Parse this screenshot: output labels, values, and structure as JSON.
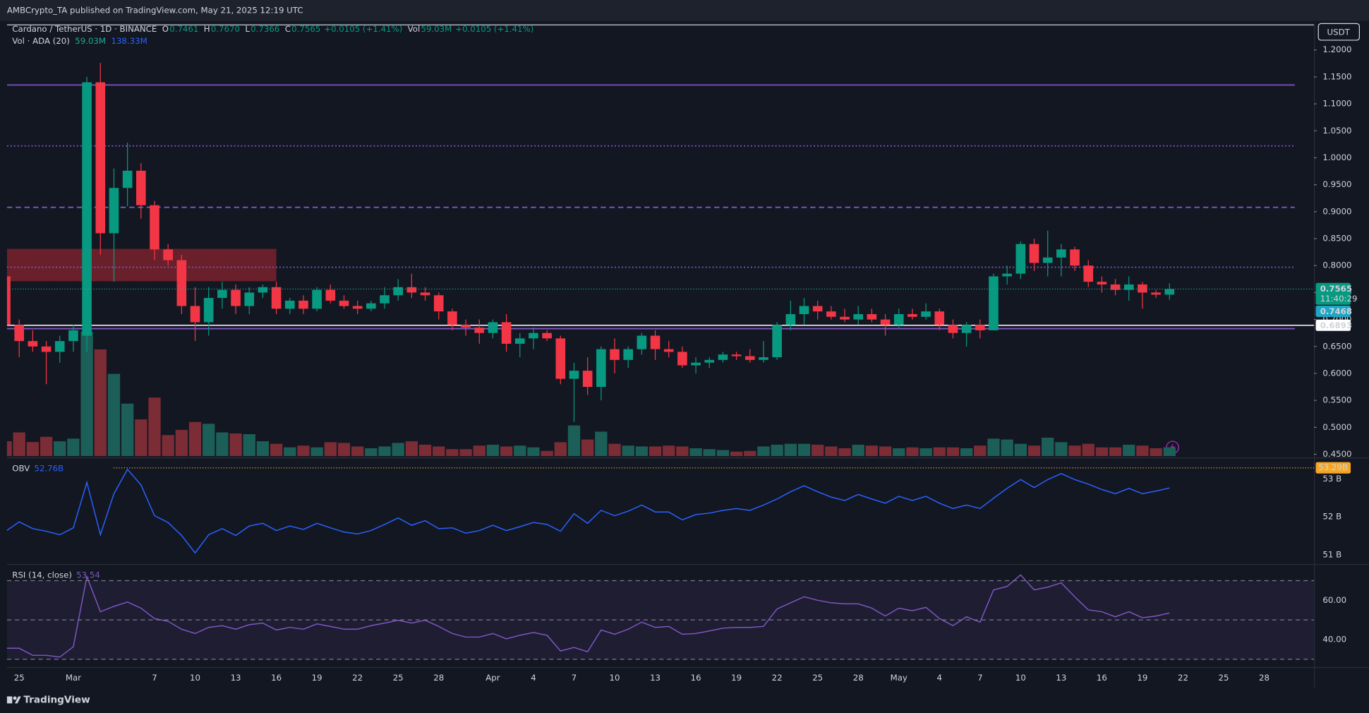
{
  "header": "AMBCrypto_TA published on TradingView.com, May 21, 2025 12:19 UTC",
  "brand": "TradingView",
  "currency": "USDT",
  "chart_data": {
    "type": "candlestick",
    "title": "Cardano / TetherUS · 1D · BINANCE",
    "legend": [
      {
        "key": "O",
        "value": "0.7461"
      },
      {
        "key": "H",
        "value": "0.7670"
      },
      {
        "key": "L",
        "value": "0.7366"
      },
      {
        "key": "C",
        "value": "0.7565"
      },
      {
        "value": "+0.0105 (+1.41%)"
      },
      {
        "key": "Vol",
        "value": "59.03M"
      },
      {
        "value": "+0.0105 (+1.41%)"
      }
    ],
    "up_color": "#089981",
    "down_color": "#f23645",
    "x": [
      "02-24",
      "02-25",
      "02-26",
      "02-27",
      "02-28",
      "03-01",
      "03-02",
      "03-03",
      "03-04",
      "03-05",
      "03-06",
      "03-07",
      "03-08",
      "03-09",
      "03-10",
      "03-11",
      "03-12",
      "03-13",
      "03-14",
      "03-15",
      "03-16",
      "03-17",
      "03-18",
      "03-19",
      "03-20",
      "03-21",
      "03-22",
      "03-23",
      "03-24",
      "03-25",
      "03-26",
      "03-27",
      "03-28",
      "03-29",
      "03-30",
      "03-31",
      "04-01",
      "04-02",
      "04-03",
      "04-04",
      "04-05",
      "04-06",
      "04-07",
      "04-08",
      "04-09",
      "04-10",
      "04-11",
      "04-12",
      "04-13",
      "04-14",
      "04-15",
      "04-16",
      "04-17",
      "04-18",
      "04-19",
      "04-20",
      "04-21",
      "04-22",
      "04-23",
      "04-24",
      "04-25",
      "04-26",
      "04-27",
      "04-28",
      "04-29",
      "04-30",
      "05-01",
      "05-02",
      "05-03",
      "05-04",
      "05-05",
      "05-06",
      "05-07",
      "05-08",
      "05-09",
      "05-10",
      "05-11",
      "05-12",
      "05-13",
      "05-14",
      "05-15",
      "05-16",
      "05-17",
      "05-18",
      "05-19",
      "05-20",
      "05-21"
    ],
    "ohlc": [
      [
        0.78,
        0.79,
        0.68,
        0.69
      ],
      [
        0.69,
        0.7,
        0.63,
        0.66
      ],
      [
        0.66,
        0.68,
        0.64,
        0.65
      ],
      [
        0.65,
        0.66,
        0.58,
        0.64
      ],
      [
        0.64,
        0.67,
        0.62,
        0.66
      ],
      [
        0.66,
        0.69,
        0.64,
        0.68
      ],
      [
        0.67,
        1.15,
        0.64,
        1.14
      ],
      [
        1.14,
        1.176,
        0.82,
        0.86
      ],
      [
        0.86,
        0.98,
        0.77,
        0.944
      ],
      [
        0.944,
        1.028,
        0.91,
        0.976
      ],
      [
        0.976,
        0.99,
        0.887,
        0.912
      ],
      [
        0.912,
        0.92,
        0.81,
        0.83
      ],
      [
        0.83,
        0.84,
        0.8,
        0.81
      ],
      [
        0.81,
        0.82,
        0.71,
        0.725
      ],
      [
        0.725,
        0.76,
        0.66,
        0.695
      ],
      [
        0.695,
        0.76,
        0.67,
        0.74
      ],
      [
        0.74,
        0.77,
        0.72,
        0.755
      ],
      [
        0.755,
        0.765,
        0.71,
        0.725
      ],
      [
        0.725,
        0.76,
        0.71,
        0.75
      ],
      [
        0.75,
        0.765,
        0.74,
        0.76
      ],
      [
        0.76,
        0.77,
        0.71,
        0.72
      ],
      [
        0.72,
        0.74,
        0.71,
        0.735
      ],
      [
        0.735,
        0.745,
        0.71,
        0.72
      ],
      [
        0.72,
        0.76,
        0.715,
        0.755
      ],
      [
        0.755,
        0.765,
        0.73,
        0.735
      ],
      [
        0.735,
        0.745,
        0.72,
        0.725
      ],
      [
        0.725,
        0.735,
        0.71,
        0.72
      ],
      [
        0.72,
        0.735,
        0.715,
        0.73
      ],
      [
        0.73,
        0.76,
        0.72,
        0.745
      ],
      [
        0.745,
        0.775,
        0.735,
        0.76
      ],
      [
        0.76,
        0.785,
        0.74,
        0.75
      ],
      [
        0.75,
        0.76,
        0.735,
        0.745
      ],
      [
        0.745,
        0.75,
        0.7,
        0.715
      ],
      [
        0.715,
        0.72,
        0.68,
        0.69
      ],
      [
        0.69,
        0.7,
        0.67,
        0.685
      ],
      [
        0.685,
        0.7,
        0.655,
        0.675
      ],
      [
        0.675,
        0.7,
        0.665,
        0.695
      ],
      [
        0.695,
        0.71,
        0.64,
        0.655
      ],
      [
        0.655,
        0.675,
        0.63,
        0.665
      ],
      [
        0.665,
        0.685,
        0.645,
        0.675
      ],
      [
        0.675,
        0.68,
        0.66,
        0.665
      ],
      [
        0.665,
        0.67,
        0.58,
        0.59
      ],
      [
        0.59,
        0.62,
        0.51,
        0.605
      ],
      [
        0.605,
        0.63,
        0.56,
        0.575
      ],
      [
        0.575,
        0.65,
        0.55,
        0.645
      ],
      [
        0.645,
        0.665,
        0.6,
        0.625
      ],
      [
        0.625,
        0.65,
        0.61,
        0.645
      ],
      [
        0.645,
        0.675,
        0.635,
        0.67
      ],
      [
        0.67,
        0.68,
        0.625,
        0.645
      ],
      [
        0.645,
        0.66,
        0.63,
        0.64
      ],
      [
        0.64,
        0.65,
        0.61,
        0.615
      ],
      [
        0.615,
        0.63,
        0.6,
        0.62
      ],
      [
        0.62,
        0.63,
        0.61,
        0.625
      ],
      [
        0.625,
        0.64,
        0.62,
        0.635
      ],
      [
        0.635,
        0.64,
        0.625,
        0.632
      ],
      [
        0.632,
        0.645,
        0.62,
        0.625
      ],
      [
        0.625,
        0.66,
        0.62,
        0.63
      ],
      [
        0.63,
        0.695,
        0.625,
        0.69
      ],
      [
        0.69,
        0.735,
        0.68,
        0.71
      ],
      [
        0.71,
        0.74,
        0.69,
        0.725
      ],
      [
        0.725,
        0.735,
        0.7,
        0.715
      ],
      [
        0.715,
        0.725,
        0.7,
        0.705
      ],
      [
        0.705,
        0.72,
        0.695,
        0.7
      ],
      [
        0.7,
        0.725,
        0.69,
        0.71
      ],
      [
        0.71,
        0.72,
        0.695,
        0.7
      ],
      [
        0.7,
        0.71,
        0.67,
        0.69
      ],
      [
        0.69,
        0.72,
        0.685,
        0.71
      ],
      [
        0.71,
        0.72,
        0.7,
        0.705
      ],
      [
        0.705,
        0.73,
        0.7,
        0.715
      ],
      [
        0.715,
        0.72,
        0.68,
        0.69
      ],
      [
        0.69,
        0.7,
        0.665,
        0.675
      ],
      [
        0.675,
        0.695,
        0.65,
        0.69
      ],
      [
        0.69,
        0.7,
        0.665,
        0.68
      ],
      [
        0.68,
        0.785,
        0.68,
        0.78
      ],
      [
        0.78,
        0.8,
        0.765,
        0.785
      ],
      [
        0.785,
        0.845,
        0.775,
        0.84
      ],
      [
        0.84,
        0.85,
        0.79,
        0.805
      ],
      [
        0.805,
        0.865,
        0.78,
        0.815
      ],
      [
        0.815,
        0.84,
        0.78,
        0.83
      ],
      [
        0.83,
        0.835,
        0.79,
        0.8
      ],
      [
        0.8,
        0.81,
        0.76,
        0.77
      ],
      [
        0.77,
        0.78,
        0.75,
        0.765
      ],
      [
        0.765,
        0.775,
        0.745,
        0.755
      ],
      [
        0.755,
        0.78,
        0.735,
        0.765
      ],
      [
        0.765,
        0.77,
        0.72,
        0.75
      ],
      [
        0.75,
        0.755,
        0.74,
        0.7461
      ],
      [
        0.7461,
        0.767,
        0.7366,
        0.7565
      ]
    ],
    "ylim": [
      0.445,
      1.244
    ],
    "yticks": [
      {
        "value": 0.45,
        "label": "0.4500"
      },
      {
        "value": 0.5,
        "label": "0.5000"
      },
      {
        "value": 0.55,
        "label": "0.5500"
      },
      {
        "value": 0.6,
        "label": "0.6000"
      },
      {
        "value": 0.65,
        "label": "0.6500"
      },
      {
        "value": 0.7,
        "label": "0.7000"
      },
      {
        "value": 0.75,
        "label": "0.7500"
      },
      {
        "value": 0.8,
        "label": "0.8000"
      },
      {
        "value": 0.85,
        "label": "0.8500"
      },
      {
        "value": 0.9,
        "label": "0.9000"
      },
      {
        "value": 0.95,
        "label": "0.9500"
      },
      {
        "value": 1.0,
        "label": "1.0000"
      },
      {
        "value": 1.05,
        "label": "1.0500"
      },
      {
        "value": 1.1,
        "label": "1.1000"
      },
      {
        "value": 1.15,
        "label": "1.1500"
      },
      {
        "value": 1.2,
        "label": "1.2000"
      }
    ],
    "xticks": [
      {
        "value": "02-25",
        "label": "25"
      },
      {
        "value": "03-01",
        "label": "Mar"
      },
      {
        "value": "03-07",
        "label": "7"
      },
      {
        "value": "03-10",
        "label": "10"
      },
      {
        "value": "03-13",
        "label": "13"
      },
      {
        "value": "03-16",
        "label": "16"
      },
      {
        "value": "03-19",
        "label": "19"
      },
      {
        "value": "03-22",
        "label": "22"
      },
      {
        "value": "03-25",
        "label": "25"
      },
      {
        "value": "03-28",
        "label": "28"
      },
      {
        "value": "04-01",
        "label": "Apr"
      },
      {
        "value": "04-04",
        "label": "4"
      },
      {
        "value": "04-07",
        "label": "7"
      },
      {
        "value": "04-10",
        "label": "10"
      },
      {
        "value": "04-13",
        "label": "13"
      },
      {
        "value": "04-16",
        "label": "16"
      },
      {
        "value": "04-19",
        "label": "19"
      },
      {
        "value": "04-22",
        "label": "22"
      },
      {
        "value": "04-25",
        "label": "25"
      },
      {
        "value": "04-28",
        "label": "28"
      },
      {
        "value": "05-01",
        "label": "May"
      },
      {
        "value": "05-04",
        "label": "4"
      },
      {
        "value": "05-07",
        "label": "7"
      },
      {
        "value": "05-10",
        "label": "10"
      },
      {
        "value": "05-13",
        "label": "13"
      },
      {
        "value": "05-16",
        "label": "16"
      },
      {
        "value": "05-19",
        "label": "19"
      },
      {
        "value": "05-22",
        "label": "22"
      },
      {
        "value": "05-25",
        "label": "25"
      },
      {
        "value": "05-28",
        "label": "28"
      }
    ],
    "grid": false,
    "hlines": [
      {
        "value": 1.135,
        "color": "#7e57c2",
        "style": "solid"
      },
      {
        "value": 1.022,
        "color": "#7e57c2",
        "style": "dotted"
      },
      {
        "value": 0.908,
        "color": "#7e57c2",
        "style": "dashed"
      },
      {
        "value": 0.797,
        "color": "#7e57c2",
        "style": "dotted"
      },
      {
        "value": 0.683,
        "color": "#7e57c2",
        "style": "solid"
      },
      {
        "value": 0.6893,
        "color": "#ffffff",
        "style": "solid",
        "full_width": true
      }
    ],
    "zone": {
      "low": 0.771,
      "high": 0.831,
      "x_end": "03-16",
      "color": "rgba(178,40,51,0.55)"
    },
    "last_price_line": {
      "value": 0.7565,
      "color": "#22ab94"
    },
    "price_labels": [
      {
        "value": 0.7565,
        "sub": "11:40:29",
        "color": "#089981",
        "text_color": "#ffffff"
      },
      {
        "value": 0.7468,
        "color": "#1ea7c5",
        "text_color": "#ffffff"
      },
      {
        "value": 0.6893,
        "color": "#ffffff",
        "text_color": "#131722"
      }
    ],
    "volume": {
      "name": "Vol · ADA (20)",
      "legend": [
        "59.03M",
        "138.33M"
      ],
      "legend_colors": [
        "#22ab94",
        "#2962ff"
      ],
      "ylim": [
        0,
        2900
      ],
      "up_color": "#1c5f58",
      "down_color": "#7b2c35",
      "values": [
        100,
        160,
        95,
        130,
        100,
        118,
        840,
        720,
        555,
        354,
        248,
        395,
        142,
        177,
        230,
        218,
        160,
        153,
        148,
        100,
        83,
        59,
        71,
        59,
        94,
        89,
        65,
        53,
        65,
        89,
        100,
        77,
        65,
        47,
        47,
        71,
        77,
        65,
        71,
        59,
        35,
        94,
        207,
        112,
        165,
        83,
        71,
        65,
        65,
        71,
        65,
        53,
        47,
        41,
        30,
        35,
        65,
        77,
        83,
        83,
        77,
        65,
        53,
        77,
        71,
        65,
        53,
        59,
        53,
        59,
        59,
        53,
        71,
        118,
        112,
        83,
        71,
        124,
        94,
        71,
        83,
        59,
        59,
        77,
        71,
        53,
        59.03
      ]
    },
    "indicators": [
      {
        "type": "line",
        "name": "OBV",
        "legend_value": "52.76B",
        "color": "#2962ff",
        "ylim": [
          50.77,
          53.53
        ],
        "yticks": [
          {
            "value": 51,
            "label": "51 B"
          },
          {
            "value": 52,
            "label": "52 B"
          },
          {
            "value": 53,
            "label": "53 B"
          }
        ],
        "level": {
          "value": 53.29,
          "label": "53.29B",
          "color": "#f5a623"
        },
        "values": [
          51.62,
          51.87,
          51.69,
          51.62,
          51.53,
          51.71,
          52.91,
          51.53,
          52.61,
          53.25,
          52.84,
          52.03,
          51.85,
          51.51,
          51.05,
          51.53,
          51.69,
          51.51,
          51.76,
          51.83,
          51.64,
          51.76,
          51.67,
          51.83,
          51.71,
          51.6,
          51.55,
          51.64,
          51.8,
          51.97,
          51.78,
          51.9,
          51.69,
          51.71,
          51.57,
          51.64,
          51.78,
          51.64,
          51.74,
          51.85,
          51.8,
          51.62,
          52.08,
          51.83,
          52.17,
          52.03,
          52.15,
          52.31,
          52.13,
          52.13,
          51.92,
          52.06,
          52.1,
          52.17,
          52.22,
          52.17,
          52.31,
          52.47,
          52.66,
          52.82,
          52.66,
          52.52,
          52.43,
          52.59,
          52.47,
          52.36,
          52.54,
          52.43,
          52.54,
          52.36,
          52.22,
          52.31,
          52.22,
          52.49,
          52.75,
          52.98,
          52.77,
          52.98,
          53.14,
          52.98,
          52.86,
          52.72,
          52.61,
          52.75,
          52.61,
          52.68,
          52.76
        ]
      },
      {
        "type": "line",
        "name": "RSI (14, close)",
        "color": "#7e57c2",
        "ylim": [
          26.2,
          77.8
        ],
        "yticks": [
          {
            "value": 60,
            "label": "60.00"
          },
          {
            "value": 40,
            "label": "40.00"
          }
        ],
        "bands": [
          70,
          50,
          30
        ],
        "band_fill": "rgba(126,87,194,0.1)",
        "values": [
          35.6,
          35.6,
          32.0,
          32.0,
          31.1,
          36.4,
          72.0,
          54.2,
          56.9,
          59.1,
          56.0,
          50.7,
          49.3,
          45.3,
          43.1,
          46.2,
          47.1,
          45.3,
          47.6,
          48.4,
          44.9,
          46.2,
          45.3,
          48.0,
          46.7,
          45.3,
          45.3,
          47.1,
          48.4,
          49.8,
          48.4,
          49.8,
          46.7,
          43.1,
          41.3,
          41.3,
          43.1,
          40.4,
          42.2,
          43.6,
          42.2,
          34.2,
          36.0,
          33.8,
          44.9,
          42.7,
          45.3,
          48.9,
          46.2,
          46.7,
          42.7,
          43.1,
          44.4,
          45.8,
          46.2,
          46.2,
          46.7,
          55.6,
          58.7,
          61.8,
          60.0,
          58.7,
          58.2,
          58.2,
          56.0,
          52.0,
          56.0,
          54.7,
          56.4,
          50.7,
          47.1,
          51.6,
          48.9,
          65.3,
          67.1,
          72.9,
          65.3,
          66.7,
          68.9,
          61.8,
          55.1,
          54.2,
          51.6,
          54.2,
          51.1,
          52.0,
          53.54
        ]
      }
    ]
  }
}
